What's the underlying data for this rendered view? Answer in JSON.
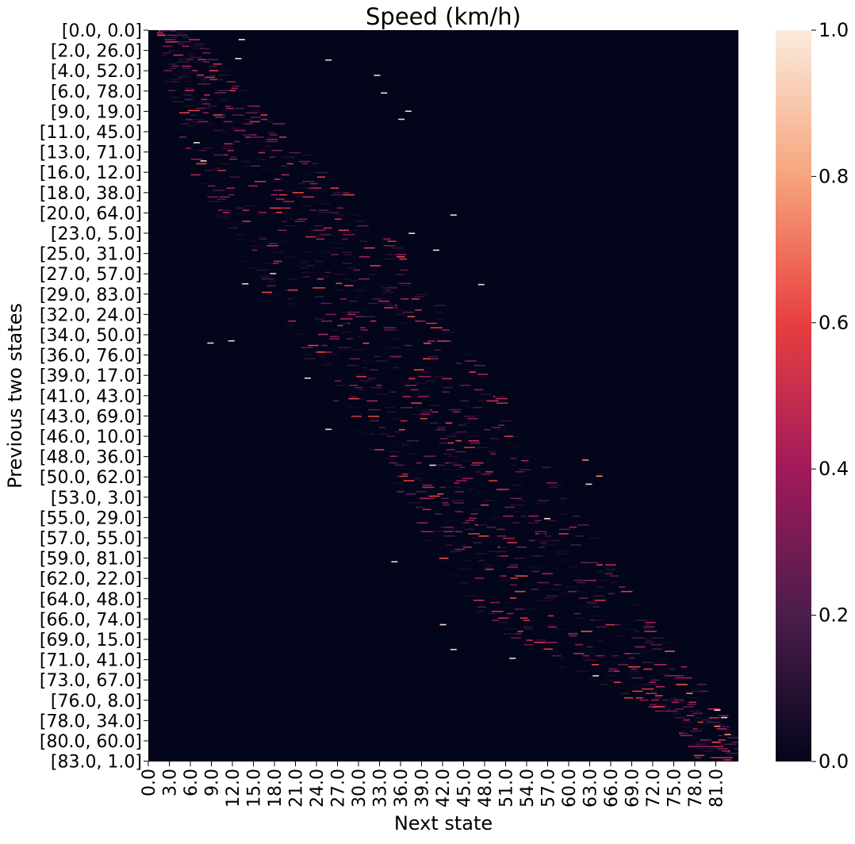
{
  "chart_data": {
    "type": "heatmap",
    "title": "Speed (km/h)",
    "xlabel": "Next state",
    "ylabel": "Previous two states",
    "x_tick_labels": [
      "0.0",
      "3.0",
      "6.0",
      "9.0",
      "12.0",
      "15.0",
      "18.0",
      "21.0",
      "24.0",
      "27.0",
      "30.0",
      "33.0",
      "36.0",
      "39.0",
      "42.0",
      "45.0",
      "48.0",
      "51.0",
      "54.0",
      "57.0",
      "60.0",
      "63.0",
      "66.0",
      "69.0",
      "72.0",
      "75.0",
      "78.0",
      "81.0"
    ],
    "x_range": [
      0,
      85
    ],
    "y_tick_labels": [
      "[0.0, 0.0]",
      "[2.0, 26.0]",
      "[4.0, 52.0]",
      "[6.0, 78.0]",
      "[9.0, 19.0]",
      "[11.0, 45.0]",
      "[13.0, 71.0]",
      "[16.0, 12.0]",
      "[18.0, 38.0]",
      "[20.0, 64.0]",
      "[23.0, 5.0]",
      "[25.0, 31.0]",
      "[27.0, 57.0]",
      "[29.0, 83.0]",
      "[32.0, 24.0]",
      "[34.0, 50.0]",
      "[36.0, 76.0]",
      "[39.0, 17.0]",
      "[41.0, 43.0]",
      "[43.0, 69.0]",
      "[46.0, 10.0]",
      "[48.0, 36.0]",
      "[50.0, 62.0]",
      "[53.0, 3.0]",
      "[55.0, 29.0]",
      "[57.0, 55.0]",
      "[59.0, 81.0]",
      "[62.0, 22.0]",
      "[64.0, 48.0]",
      "[66.0, 74.0]",
      "[69.0, 15.0]",
      "[71.0, 41.0]",
      "[73.0, 67.0]",
      "[76.0, 8.0]",
      "[78.0, 34.0]",
      "[80.0, 60.0]",
      "[83.0, 1.0]"
    ],
    "colorbar": {
      "min": 0.0,
      "max": 1.0,
      "ticks": [
        "0.0",
        "0.2",
        "0.4",
        "0.6",
        "0.8",
        "1.0"
      ],
      "colors": [
        "#03051a",
        "#4c1d4b",
        "#a11a5b",
        "#e83f3f",
        "#f6a47c",
        "#faebdd"
      ]
    },
    "diagonal_band": [
      {
        "row_frac": 0.0,
        "center": 3,
        "width": 4
      },
      {
        "row_frac": 0.1,
        "center": 9,
        "width": 12
      },
      {
        "row_frac": 0.2,
        "center": 16,
        "width": 20
      },
      {
        "row_frac": 0.3,
        "center": 24,
        "width": 24
      },
      {
        "row_frac": 0.4,
        "center": 31,
        "width": 24
      },
      {
        "row_frac": 0.5,
        "center": 38,
        "width": 24
      },
      {
        "row_frac": 0.6,
        "center": 45,
        "width": 24
      },
      {
        "row_frac": 0.7,
        "center": 52,
        "width": 24
      },
      {
        "row_frac": 0.8,
        "center": 59,
        "width": 24
      },
      {
        "row_frac": 0.88,
        "center": 69,
        "width": 18
      },
      {
        "row_frac": 0.94,
        "center": 79,
        "width": 8
      },
      {
        "row_frac": 1.0,
        "center": 82,
        "width": 6
      }
    ],
    "highlight_points": [
      {
        "x": 13.0,
        "row_frac": 0.012,
        "value": 1.0
      },
      {
        "x": 12.5,
        "row_frac": 0.038,
        "value": 0.95
      },
      {
        "x": 25.5,
        "row_frac": 0.04,
        "value": 0.95
      },
      {
        "x": 32.5,
        "row_frac": 0.061,
        "value": 0.95
      },
      {
        "x": 33.5,
        "row_frac": 0.085,
        "value": 0.95
      },
      {
        "x": 37.0,
        "row_frac": 0.11,
        "value": 0.95
      },
      {
        "x": 36.0,
        "row_frac": 0.121,
        "value": 0.95
      },
      {
        "x": 6.5,
        "row_frac": 0.153,
        "value": 0.95
      },
      {
        "x": 7.5,
        "row_frac": 0.178,
        "value": 0.95
      },
      {
        "x": 43.5,
        "row_frac": 0.252,
        "value": 0.95
      },
      {
        "x": 37.5,
        "row_frac": 0.277,
        "value": 0.95
      },
      {
        "x": 41.0,
        "row_frac": 0.3,
        "value": 0.95
      },
      {
        "x": 17.5,
        "row_frac": 0.332,
        "value": 0.9
      },
      {
        "x": 13.5,
        "row_frac": 0.346,
        "value": 0.95
      },
      {
        "x": 47.5,
        "row_frac": 0.347,
        "value": 0.95
      },
      {
        "x": 8.5,
        "row_frac": 0.427,
        "value": 0.95
      },
      {
        "x": 11.5,
        "row_frac": 0.424,
        "value": 0.95
      },
      {
        "x": 22.5,
        "row_frac": 0.475,
        "value": 0.95
      },
      {
        "x": 25.5,
        "row_frac": 0.545,
        "value": 0.95
      },
      {
        "x": 40.5,
        "row_frac": 0.594,
        "value": 0.95
      },
      {
        "x": 62.5,
        "row_frac": 0.587,
        "value": 0.75
      },
      {
        "x": 64.5,
        "row_frac": 0.609,
        "value": 0.75
      },
      {
        "x": 63.0,
        "row_frac": 0.62,
        "value": 0.95
      },
      {
        "x": 57.0,
        "row_frac": 0.667,
        "value": 0.95
      },
      {
        "x": 35.0,
        "row_frac": 0.726,
        "value": 0.95
      },
      {
        "x": 42.0,
        "row_frac": 0.812,
        "value": 0.95
      },
      {
        "x": 43.5,
        "row_frac": 0.846,
        "value": 0.95
      },
      {
        "x": 52.0,
        "row_frac": 0.858,
        "value": 0.95
      },
      {
        "x": 64.0,
        "row_frac": 0.882,
        "value": 0.95
      },
      {
        "x": 77.5,
        "row_frac": 0.906,
        "value": 0.75
      },
      {
        "x": 81.5,
        "row_frac": 0.929,
        "value": 0.95
      },
      {
        "x": 82.5,
        "row_frac": 0.939,
        "value": 0.95
      },
      {
        "x": 81.5,
        "row_frac": 0.951,
        "value": 0.75
      },
      {
        "x": 83.0,
        "row_frac": 0.962,
        "value": 0.75
      }
    ]
  }
}
